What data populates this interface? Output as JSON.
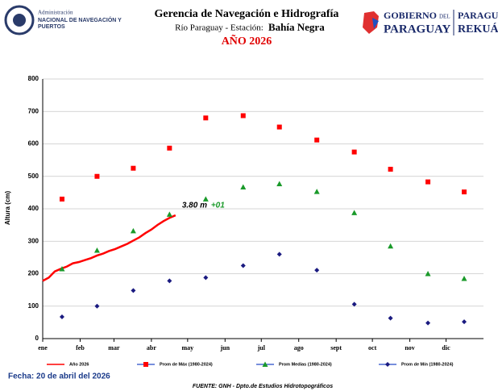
{
  "header": {
    "title": "Gerencia de Navegación e Hidrografía",
    "subtitle": "Río Paraguay  -  Estación:",
    "station": "Bahía Negra",
    "year": "AÑO 2026",
    "left_logo": [
      "Administración",
      "NACIONAL DE NAVEGACIÓN Y",
      "PUERTOS"
    ],
    "right_logo": [
      "GOBIERNO",
      "DEL",
      "PARAGUAY",
      "PARAGUÁI",
      "REKUÁI"
    ]
  },
  "chart_data": {
    "type": "scatter",
    "y_label": "Altura (cm)",
    "xlim": [
      0,
      365
    ],
    "xticks": [
      {
        "value": 0,
        "label": "ene"
      },
      {
        "value": 31,
        "label": "feb"
      },
      {
        "value": 59,
        "label": "mar"
      },
      {
        "value": 90,
        "label": "abr"
      },
      {
        "value": 120,
        "label": "may"
      },
      {
        "value": 151,
        "label": "jun"
      },
      {
        "value": 181,
        "label": "jul"
      },
      {
        "value": 212,
        "label": "ago"
      },
      {
        "value": 243,
        "label": "sept"
      },
      {
        "value": 273,
        "label": "oct"
      },
      {
        "value": 304,
        "label": "nov"
      },
      {
        "value": 334,
        "label": "dic"
      }
    ],
    "ylim": [
      0,
      800
    ],
    "yticks": [
      0,
      100,
      200,
      300,
      400,
      500,
      600,
      700,
      800
    ],
    "grid": true,
    "series": [
      {
        "name": "Año 2026",
        "color": "#ff0000",
        "marker": "line",
        "x": [
          0,
          5,
          10,
          15,
          20,
          25,
          30,
          35,
          40,
          45,
          50,
          55,
          60,
          65,
          70,
          75,
          80,
          85,
          90,
          95,
          100,
          105,
          110
        ],
        "values": [
          178,
          188,
          207,
          215,
          222,
          232,
          236,
          242,
          248,
          256,
          262,
          270,
          276,
          284,
          292,
          302,
          312,
          325,
          336,
          350,
          362,
          372,
          380
        ]
      },
      {
        "name": "Prom de Máx (1980-2024)",
        "color": "#ff0000",
        "marker": "square",
        "x": [
          16,
          45,
          75,
          105,
          135,
          166,
          196,
          227,
          258,
          288,
          319,
          349
        ],
        "values": [
          430,
          500,
          525,
          587,
          680,
          687,
          652,
          612,
          575,
          522,
          483,
          452
        ]
      },
      {
        "name": "Prom Medias (1980-2024)",
        "color": "#1a9a2a",
        "marker": "triangle",
        "x": [
          16,
          45,
          75,
          105,
          135,
          166,
          196,
          227,
          258,
          288,
          319,
          349
        ],
        "values": [
          215,
          272,
          332,
          383,
          430,
          467,
          477,
          453,
          388,
          285,
          200,
          185
        ]
      },
      {
        "name": "Prom de Mín (1980-2024)",
        "color": "#1a1a80",
        "marker": "diamond",
        "x": [
          16,
          45,
          75,
          105,
          135,
          166,
          196,
          227,
          258,
          288,
          319,
          349
        ],
        "values": [
          67,
          100,
          148,
          178,
          188,
          225,
          260,
          211,
          106,
          63,
          48,
          52
        ]
      }
    ],
    "annotation": {
      "value": "3.80 m",
      "change": "+01"
    },
    "date": "Fecha: 20 de abril del 2026",
    "source": "FUENTE: GNH - Dpto.de Estudios Hidrotopográficos"
  }
}
